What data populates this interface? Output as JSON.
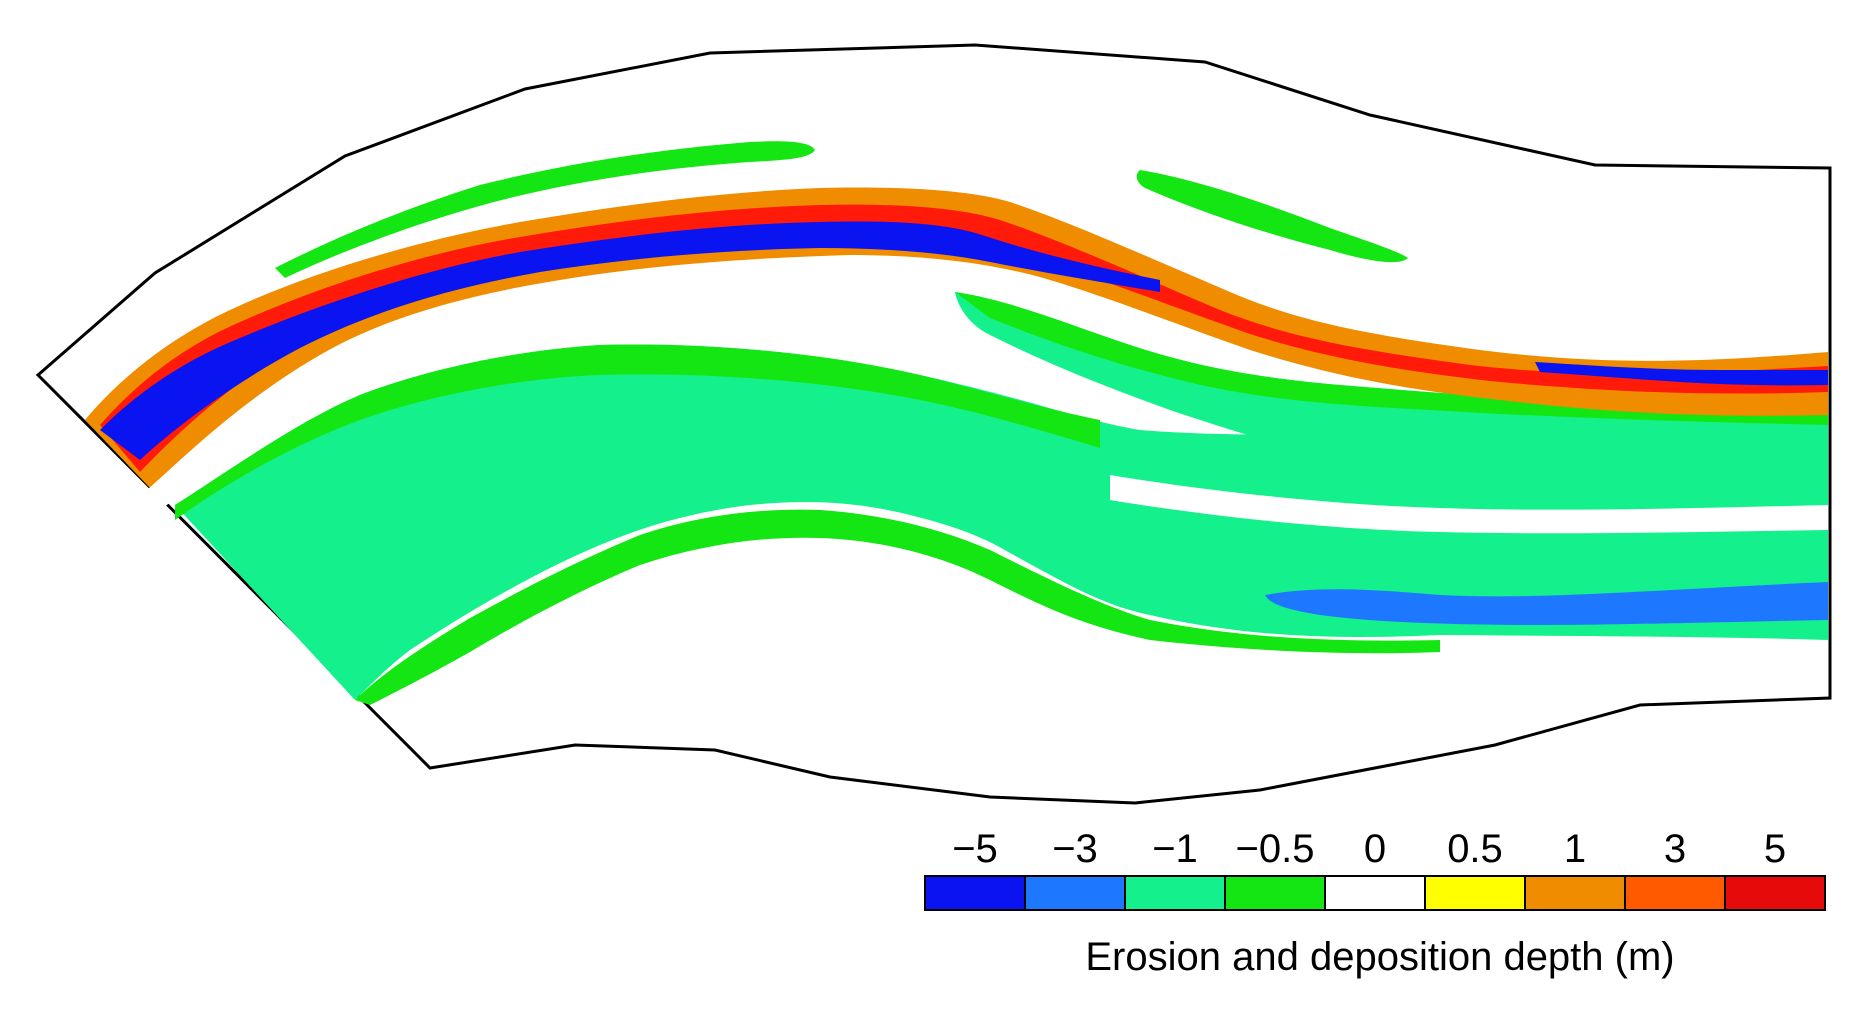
{
  "legend": {
    "title": "Erosion and deposition depth (m)",
    "tick_labels": [
      "−5",
      "−3",
      "−1",
      "−0.5",
      "0",
      "0.5",
      "1",
      "3",
      "5"
    ],
    "bins": [
      {
        "color": "#0a14f0"
      },
      {
        "color": "#1e78ff"
      },
      {
        "color": "#14f08c"
      },
      {
        "color": "#14e614"
      },
      {
        "color": "#ffffff"
      },
      {
        "color": "#ffff00"
      },
      {
        "color": "#f08c00"
      },
      {
        "color": "#ff5a00"
      },
      {
        "color": "#e60a0a"
      }
    ]
  },
  "colors": {
    "outline": "#000000",
    "deep_erosion": "#0a14f0",
    "moderate_erosion": "#1e78ff",
    "light_erosion": "#14f08c",
    "slight_erosion": "#14e614",
    "none": "#ffffff",
    "deposition_1": "#f08c00",
    "deposition_5": "#ff1a0a"
  }
}
